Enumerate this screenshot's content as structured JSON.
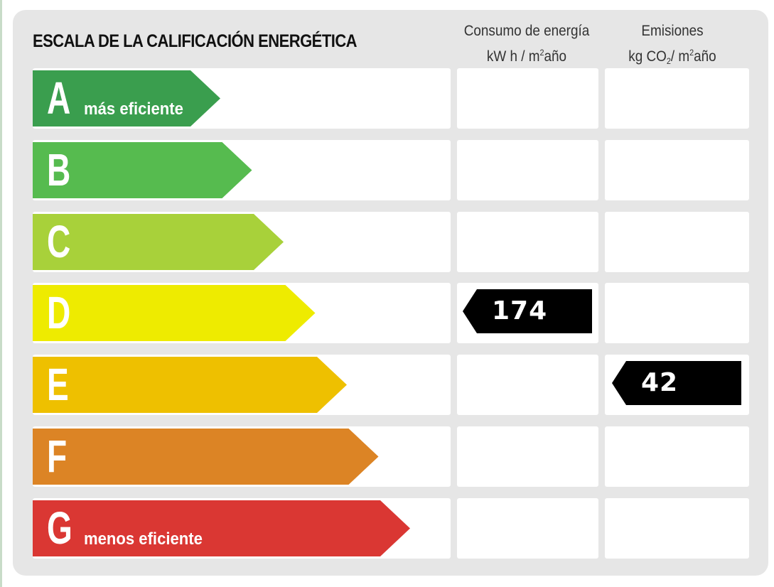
{
  "title": "ESCALA DE LA CALIFICACIÓN ENERGÉTICA",
  "columns": {
    "energy": {
      "line1": "Consumo de energía",
      "line2_pre": "kW h / m",
      "line2_sup": "2",
      "line2_post": "año"
    },
    "emissions": {
      "line1": "Emisiones",
      "line2_pre": "kg CO",
      "line2_sub": "2",
      "line2_mid": "/ m",
      "line2_sup": "2",
      "line2_post": "año"
    }
  },
  "ratings": [
    {
      "letter": "A",
      "sublabel": "más eficiente",
      "color": "#3a9e4e"
    },
    {
      "letter": "B",
      "sublabel": "",
      "color": "#56bb4f"
    },
    {
      "letter": "C",
      "sublabel": "",
      "color": "#a8d13a"
    },
    {
      "letter": "D",
      "sublabel": "",
      "color": "#eeeb00"
    },
    {
      "letter": "E",
      "sublabel": "",
      "color": "#eec000"
    },
    {
      "letter": "F",
      "sublabel": "",
      "color": "#dc8425"
    },
    {
      "letter": "G",
      "sublabel": "menos eficiente",
      "color": "#da3733"
    }
  ],
  "energy_marker": {
    "value": "174",
    "rating": "D",
    "color": "#000000"
  },
  "emissions_marker": {
    "value": "42",
    "rating": "E",
    "color": "#000000"
  }
}
